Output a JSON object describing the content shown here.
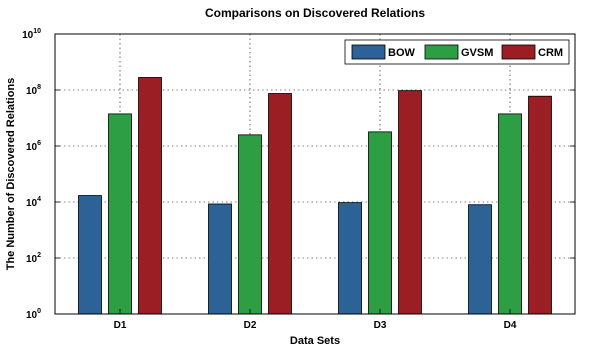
{
  "chart_data": {
    "type": "bar",
    "title": "Comparisons on Discovered Relations",
    "xlabel": "Data Sets",
    "ylabel": "The Number of Discovered Relations",
    "yscale": "log",
    "ylim": [
      1,
      10000000000
    ],
    "ytick_base": "10",
    "ytick_exponents": [
      "0",
      "2",
      "4",
      "6",
      "8",
      "10"
    ],
    "categories": [
      "D1",
      "D2",
      "D3",
      "D4"
    ],
    "series": [
      {
        "name": "BOW",
        "color": "#2d6296",
        "values": [
          17000,
          8500,
          9500,
          8000
        ]
      },
      {
        "name": "GVSM",
        "color": "#2e9e45",
        "values": [
          14000000,
          2500000,
          3200000,
          14000000
        ]
      },
      {
        "name": "CRM",
        "color": "#9b1e24",
        "values": [
          280000000,
          75000000,
          95000000,
          60000000
        ]
      }
    ],
    "grid": true,
    "legend_position": "top-right"
  }
}
